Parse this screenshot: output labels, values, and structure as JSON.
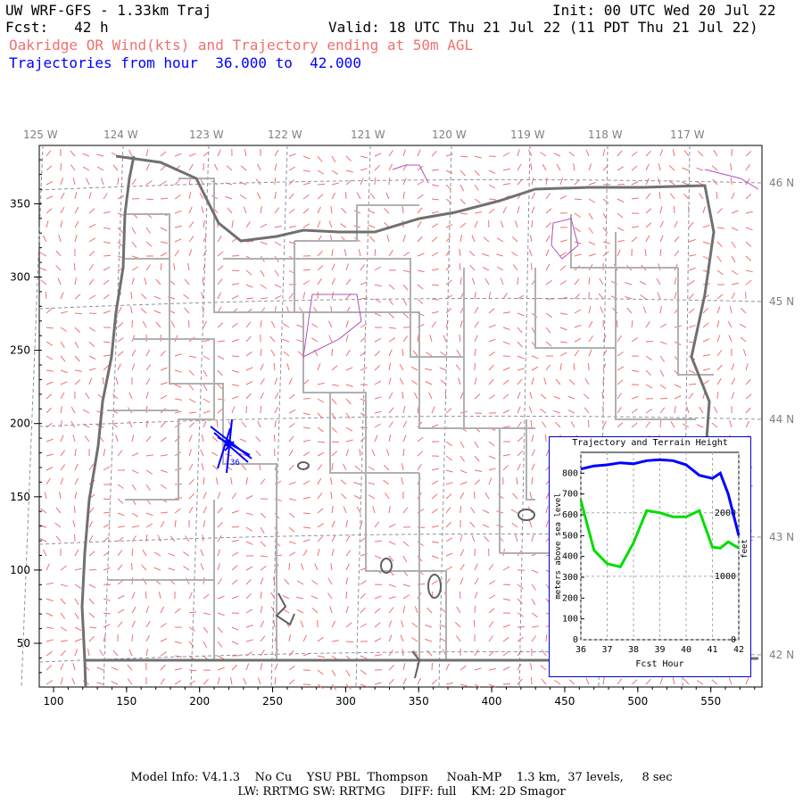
{
  "header": {
    "title": "UW WRF-GFS - 1.33km Traj",
    "init": "Init: 00 UTC Wed 20 Jul 22",
    "fcst": "Fcst:   42 h",
    "valid": "Valid: 18 UTC Thu 21 Jul 22 (11 PDT Thu 21 Jul 22)",
    "subtitle": "Oakridge OR Wind(kts) and Trajectory ending at 50m AGL",
    "traj_range": "Trajectories from hour  36.000 to  42.000"
  },
  "map": {
    "lon_labels": [
      "125 W",
      "124 W",
      "123 W",
      "122 W",
      "121 W",
      "120 W",
      "119 W",
      "118 W",
      "117 W"
    ],
    "lat_labels": [
      "46 N",
      "45 N",
      "44 N",
      "43 N",
      "42 N"
    ],
    "x_ticks": [
      "100",
      "150",
      "200",
      "250",
      "300",
      "350",
      "400",
      "450",
      "500",
      "550"
    ],
    "y_ticks": [
      "350",
      "300",
      "250",
      "200",
      "150",
      "100",
      "50"
    ],
    "colors": {
      "wind_barbs": "#f07070",
      "state_border": "#707070",
      "county_border": "#b0b0b0",
      "water": "#b050c0",
      "trajectory": "#0000ff",
      "terrain": "#00dd00",
      "grid": "#9090a0"
    },
    "trajectory_label": "36"
  },
  "inset": {
    "title": "Trajectory and Terrain Height",
    "ylabel_left": "meters above sea level",
    "ylabel_right": "feet",
    "xlabel": "Fcst Hour",
    "x_ticks": [
      "36",
      "37",
      "38",
      "39",
      "40",
      "41",
      "42"
    ],
    "y_ticks": [
      "0",
      "100",
      "200",
      "300",
      "400",
      "500",
      "600",
      "700",
      "800"
    ],
    "y_ticks_right": [
      "0",
      "1000",
      "2000"
    ],
    "chart_data": {
      "type": "line",
      "x": [
        36,
        36.5,
        37,
        37.5,
        38,
        38.5,
        39,
        39.5,
        40,
        40.5,
        41,
        41.3,
        41.6,
        42
      ],
      "series": [
        {
          "values": [
            820,
            835,
            840,
            850,
            845,
            860,
            865,
            860,
            840,
            790,
            775,
            800,
            700,
            500
          ]
        },
        {
          "values": [
            670,
            430,
            365,
            350,
            465,
            620,
            610,
            590,
            590,
            620,
            445,
            440,
            470,
            440
          ]
        }
      ],
      "xlim": [
        36,
        42
      ],
      "ylim": [
        0,
        900
      ]
    }
  },
  "footer": {
    "line1": "Model Info: V4.1.3    No Cu    YSU PBL  Thompson     Noah-MP    1.3 km,  37 levels,     8 sec",
    "line2": "LW: RRTMG SW: RRTMG    DIFF: full    KM: 2D Smagor"
  }
}
